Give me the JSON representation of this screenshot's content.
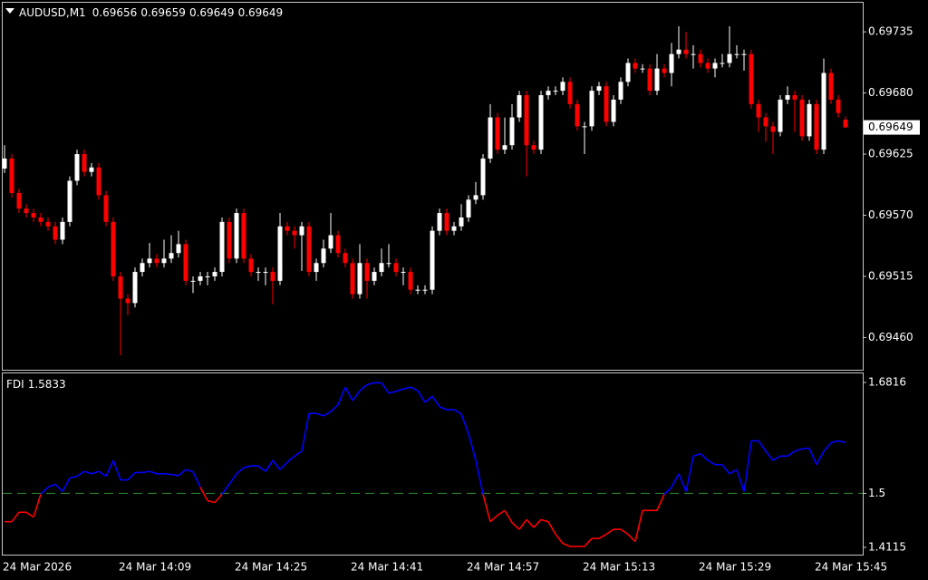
{
  "chart_data": [
    {
      "type": "candlestick",
      "title": "AUDUSD,M1",
      "categories": [
        "24 Mar 2026",
        null,
        null,
        null,
        null,
        null,
        null,
        null,
        null,
        null,
        null,
        null,
        null,
        null,
        null,
        null,
        "24 Mar 14:09",
        null,
        null,
        null,
        null,
        null,
        null,
        null,
        null,
        null,
        null,
        null,
        null,
        null,
        null,
        null,
        "24 Mar 14:25",
        null,
        null,
        null,
        null,
        null,
        null,
        null,
        null,
        null,
        null,
        null,
        null,
        null,
        null,
        null,
        "24 Mar 14:41",
        null,
        null,
        null,
        null,
        null,
        null,
        null,
        null,
        null,
        null,
        null,
        null,
        null,
        null,
        null,
        "24 Mar 14:57",
        null,
        null,
        null,
        null,
        null,
        null,
        null,
        null,
        null,
        null,
        null,
        null,
        null,
        null,
        null,
        "24 Mar 15:13",
        null,
        null,
        null,
        null,
        null,
        null,
        null,
        null,
        null,
        null,
        null,
        null,
        null,
        null,
        null,
        "24 Mar 15:29",
        null,
        null,
        null,
        null,
        null,
        null,
        null,
        null,
        null,
        null,
        null,
        null,
        null,
        null,
        null,
        "24 Mar 15:45",
        null,
        null,
        null,
        null
      ],
      "open": [
        0.69612,
        0.69621,
        0.6959,
        0.69576,
        0.69572,
        0.69568,
        0.69564,
        0.6956,
        0.69548,
        0.69564,
        0.69601,
        0.69625,
        0.69609,
        0.69613,
        0.69588,
        0.69564,
        0.69515,
        0.69495,
        0.69491,
        0.69519,
        0.69527,
        0.69531,
        0.69527,
        0.69531,
        0.69536,
        0.69544,
        0.69511,
        0.69511,
        0.69515,
        0.69515,
        0.69519,
        0.69564,
        0.69531,
        0.69572,
        0.69531,
        0.69519,
        0.69519,
        0.69519,
        0.69511,
        0.6956,
        0.69556,
        0.69552,
        0.6956,
        0.69519,
        0.69527,
        0.6954,
        0.69552,
        0.69536,
        0.69527,
        0.69499,
        0.69527,
        0.69511,
        0.69519,
        0.69527,
        0.69527,
        0.69519,
        0.69519,
        0.69503,
        0.69503,
        0.69503,
        0.69556,
        0.69572,
        0.69556,
        0.6956,
        0.69568,
        0.69584,
        0.69588,
        0.69621,
        0.69658,
        0.69629,
        0.69633,
        0.69658,
        0.69678,
        0.69633,
        0.69629,
        0.69678,
        0.69682,
        0.69682,
        0.6969,
        0.6967,
        0.6965,
        0.6965,
        0.69682,
        0.69686,
        0.69654,
        0.69674,
        0.6969,
        0.69707,
        0.69702,
        0.69702,
        0.69682,
        0.69702,
        0.69698,
        0.69715,
        0.69719,
        0.69715,
        0.69715,
        0.69707,
        0.69702,
        0.69707,
        0.69707,
        0.69715,
        0.69715,
        0.69715,
        0.6967,
        0.69658,
        0.6965,
        0.69645,
        0.69674,
        0.69678,
        0.69674,
        0.69641,
        0.6967,
        0.69629,
        0.69698,
        0.69674,
        0.69656
      ],
      "high": [
        0.69633,
        0.69625,
        0.69594,
        0.6958,
        0.69576,
        0.69572,
        0.69568,
        0.69564,
        0.69568,
        0.69605,
        0.69629,
        0.69629,
        0.69617,
        0.69617,
        0.69592,
        0.69568,
        0.69519,
        0.69499,
        0.69523,
        0.69531,
        0.69545,
        0.69535,
        0.69548,
        0.69552,
        0.69556,
        0.69548,
        0.69515,
        0.69519,
        0.69519,
        0.69523,
        0.69568,
        0.69568,
        0.69576,
        0.69576,
        0.69535,
        0.69523,
        0.69523,
        0.69523,
        0.69572,
        0.69564,
        0.6956,
        0.69564,
        0.69564,
        0.69531,
        0.69548,
        0.69572,
        0.69556,
        0.6954,
        0.69531,
        0.69544,
        0.69531,
        0.69523,
        0.6954,
        0.69544,
        0.69531,
        0.69523,
        0.69523,
        0.69507,
        0.69507,
        0.6956,
        0.69576,
        0.69576,
        0.69564,
        0.6958,
        0.69588,
        0.696,
        0.69625,
        0.6967,
        0.69662,
        0.69658,
        0.6967,
        0.69682,
        0.69682,
        0.69637,
        0.69682,
        0.69686,
        0.69686,
        0.69694,
        0.69694,
        0.69674,
        0.69654,
        0.69686,
        0.6969,
        0.6969,
        0.69678,
        0.69694,
        0.69711,
        0.69711,
        0.69706,
        0.69706,
        0.69715,
        0.69706,
        0.69725,
        0.6974,
        0.69735,
        0.69723,
        0.69719,
        0.69711,
        0.69711,
        0.69715,
        0.6974,
        0.69723,
        0.69719,
        0.69719,
        0.69674,
        0.69662,
        0.69654,
        0.69678,
        0.69686,
        0.69682,
        0.69678,
        0.69674,
        0.69674,
        0.69711,
        0.69702,
        0.69678,
        0.69659
      ],
      "low": [
        0.69608,
        0.69586,
        0.69572,
        0.69568,
        0.69564,
        0.6956,
        0.69556,
        0.69544,
        0.69544,
        0.6956,
        0.69597,
        0.69605,
        0.69605,
        0.69584,
        0.6956,
        0.69511,
        0.69444,
        0.6948,
        0.69487,
        0.69515,
        0.69523,
        0.69523,
        0.69523,
        0.69527,
        0.69532,
        0.69507,
        0.695,
        0.69507,
        0.69507,
        0.69511,
        0.69515,
        0.69527,
        0.69527,
        0.69527,
        0.69515,
        0.69511,
        0.69507,
        0.6949,
        0.69507,
        0.69552,
        0.6954,
        0.6952,
        0.69515,
        0.69511,
        0.69523,
        0.69536,
        0.69532,
        0.69523,
        0.69495,
        0.69495,
        0.69495,
        0.69507,
        0.69515,
        0.69523,
        0.69515,
        0.69507,
        0.69499,
        0.69499,
        0.69499,
        0.69499,
        0.69552,
        0.69552,
        0.69552,
        0.69556,
        0.69564,
        0.6958,
        0.69584,
        0.69617,
        0.69625,
        0.69625,
        0.69629,
        0.69654,
        0.69605,
        0.69625,
        0.69625,
        0.69674,
        0.69678,
        0.69678,
        0.69666,
        0.69646,
        0.69625,
        0.69646,
        0.69678,
        0.6965,
        0.6965,
        0.6967,
        0.69686,
        0.69698,
        0.69698,
        0.69678,
        0.69678,
        0.69694,
        0.69686,
        0.69711,
        0.69711,
        0.69702,
        0.69703,
        0.69698,
        0.69694,
        0.69703,
        0.69703,
        0.69711,
        0.697,
        0.69666,
        0.69645,
        0.69636,
        0.69625,
        0.69641,
        0.6967,
        0.69645,
        0.69637,
        0.69637,
        0.69625,
        0.69625,
        0.6967,
        0.69658,
        0.69649
      ],
      "close": [
        0.69621,
        0.6959,
        0.69576,
        0.69572,
        0.69568,
        0.69564,
        0.6956,
        0.69548,
        0.69564,
        0.69601,
        0.69625,
        0.69609,
        0.69613,
        0.69588,
        0.69564,
        0.69515,
        0.69495,
        0.69491,
        0.69519,
        0.69527,
        0.69531,
        0.69527,
        0.69531,
        0.69536,
        0.69544,
        0.69511,
        0.69511,
        0.69515,
        0.69515,
        0.69519,
        0.69564,
        0.69531,
        0.69572,
        0.69531,
        0.69519,
        0.69519,
        0.69519,
        0.69511,
        0.6956,
        0.69556,
        0.69552,
        0.6956,
        0.69519,
        0.69527,
        0.6954,
        0.69552,
        0.69536,
        0.69527,
        0.69499,
        0.69527,
        0.69511,
        0.69519,
        0.69527,
        0.69527,
        0.69519,
        0.69519,
        0.69503,
        0.69503,
        0.69503,
        0.69556,
        0.69572,
        0.69556,
        0.6956,
        0.69568,
        0.69584,
        0.69588,
        0.69621,
        0.69658,
        0.69629,
        0.69633,
        0.69658,
        0.69678,
        0.69633,
        0.69629,
        0.69678,
        0.69682,
        0.69682,
        0.6969,
        0.6967,
        0.6965,
        0.6965,
        0.69682,
        0.69686,
        0.69654,
        0.69674,
        0.6969,
        0.69707,
        0.69702,
        0.69702,
        0.69682,
        0.69702,
        0.69698,
        0.69715,
        0.69719,
        0.69715,
        0.69715,
        0.69707,
        0.69702,
        0.69707,
        0.69707,
        0.69715,
        0.69715,
        0.69715,
        0.6967,
        0.69658,
        0.6965,
        0.69645,
        0.69674,
        0.69678,
        0.69674,
        0.69641,
        0.6967,
        0.69629,
        0.69698,
        0.69674,
        0.69662,
        0.69649
      ],
      "up_color": "#ffffff",
      "down_color": "#ff0000",
      "ylim": [
        0.69431,
        0.69762
      ],
      "yticks": [
        0.69735,
        {
          "value": 0.6968,
          "label": "0.69680"
        },
        0.69625,
        {
          "value": 0.6957,
          "label": "0.69570"
        },
        0.69515,
        {
          "value": 0.6946,
          "label": "0.69460"
        }
      ]
    },
    {
      "type": "line",
      "title": "FDI",
      "values": [
        1.4535,
        1.4535,
        1.469,
        1.469,
        1.461,
        1.4985,
        1.51,
        1.515,
        1.503,
        1.525,
        1.528,
        1.536,
        1.532,
        1.536,
        1.528,
        1.554,
        1.522,
        1.522,
        1.534,
        1.534,
        1.536,
        1.532,
        1.532,
        1.531,
        1.529,
        1.539,
        1.535,
        1.51,
        1.488,
        1.485,
        1.4985,
        1.515,
        1.532,
        1.542,
        1.545,
        1.545,
        1.536,
        1.554,
        1.539,
        1.551,
        1.561,
        1.569,
        1.631,
        1.631,
        1.627,
        1.634,
        1.645,
        1.674,
        1.652,
        1.668,
        1.678,
        1.681,
        1.681,
        1.664,
        1.667,
        1.671,
        1.674,
        1.668,
        1.649,
        1.659,
        1.642,
        1.637,
        1.637,
        1.63,
        1.598,
        1.554,
        1.4985,
        1.4535,
        1.464,
        1.472,
        1.452,
        1.441,
        1.457,
        1.444,
        1.457,
        1.4535,
        1.433,
        1.418,
        1.413,
        1.413,
        1.413,
        1.426,
        1.426,
        1.433,
        1.441,
        1.441,
        1.433,
        1.421,
        1.472,
        1.472,
        1.472,
        1.4985,
        1.51,
        1.532,
        1.503,
        1.561,
        1.565,
        1.554,
        1.547,
        1.547,
        1.532,
        1.539,
        1.503,
        1.586,
        1.586,
        1.569,
        1.554,
        1.561,
        1.561,
        1.569,
        1.573,
        1.574,
        1.547,
        1.569,
        1.583,
        1.586,
        1.5833
      ],
      "color": "#0000ff",
      "below_color": "#ff0000",
      "level": 1.5,
      "level_color": "#2e8b2e",
      "ylim": [
        1.3996,
        1.698
      ],
      "yticks": [
        1.6816,
        1.5,
        1.4115
      ]
    }
  ]
}
